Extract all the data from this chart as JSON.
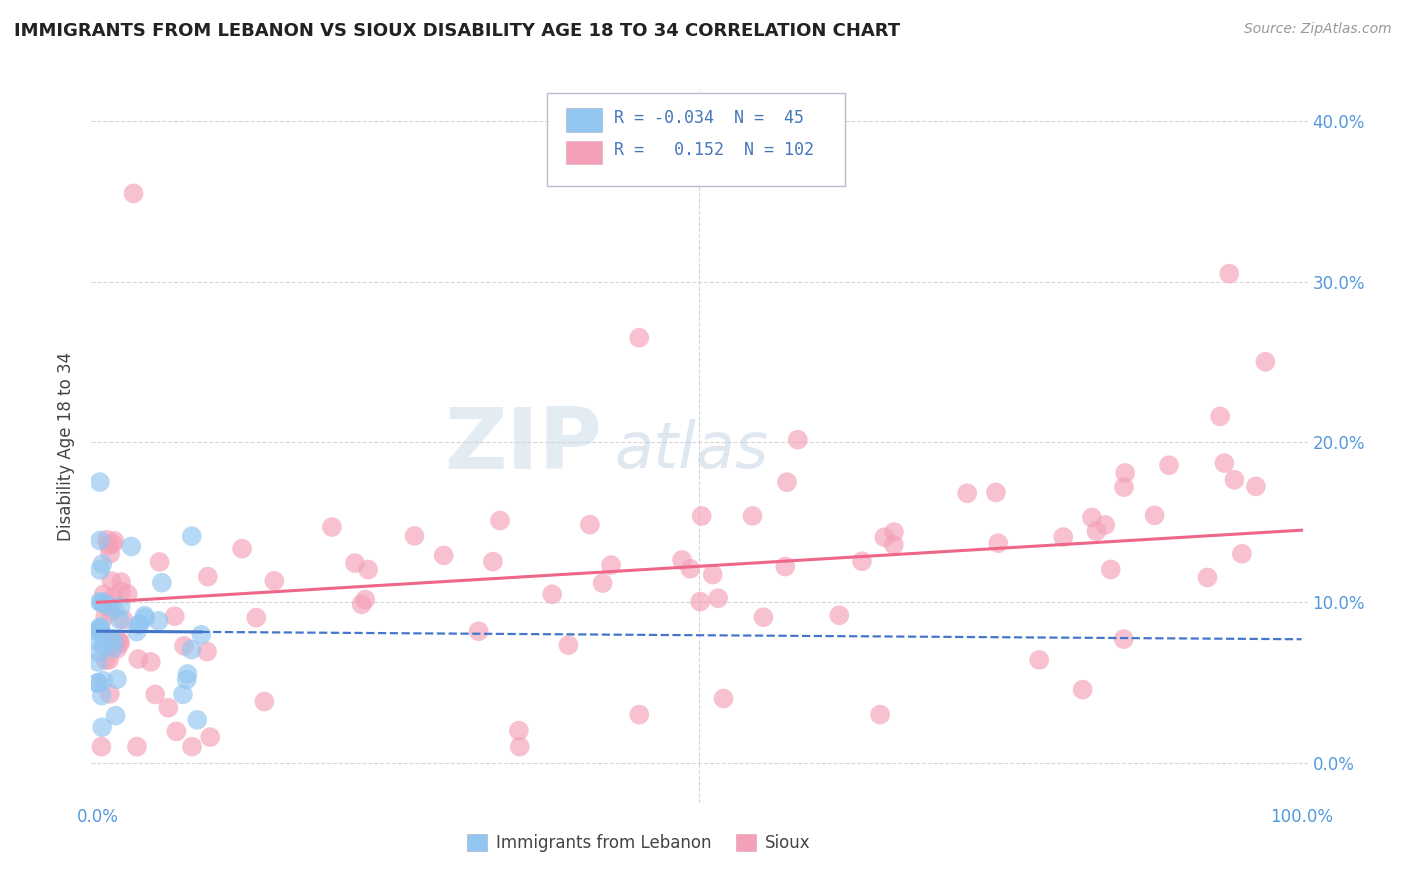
{
  "title": "IMMIGRANTS FROM LEBANON VS SIOUX DISABILITY AGE 18 TO 34 CORRELATION CHART",
  "source_text": "Source: ZipAtlas.com",
  "ylabel": "Disability Age 18 to 34",
  "xlim": [
    -0.005,
    1.005
  ],
  "ylim": [
    -0.025,
    0.42
  ],
  "xtick_positions": [
    0.0,
    1.0
  ],
  "xticklabels": [
    "0.0%",
    "100.0%"
  ],
  "ytick_positions": [
    0.0,
    0.1,
    0.2,
    0.3,
    0.4
  ],
  "yticklabels": [
    "0.0%",
    "10.0%",
    "20.0%",
    "30.0%",
    "40.0%"
  ],
  "legend_r1": "-0.034",
  "legend_n1": "45",
  "legend_r2": "0.152",
  "legend_n2": "102",
  "color_blue": "#92C5F0",
  "color_pink": "#F4A0B8",
  "color_blue_line": "#4477CC",
  "color_pink_line": "#EE6688",
  "watermark_zip": "ZIP",
  "watermark_atlas": "atlas",
  "background_color": "#FFFFFF",
  "grid_color": "#CCCCCC",
  "tick_color": "#5599DD",
  "legend_text_color": "#4477BB"
}
